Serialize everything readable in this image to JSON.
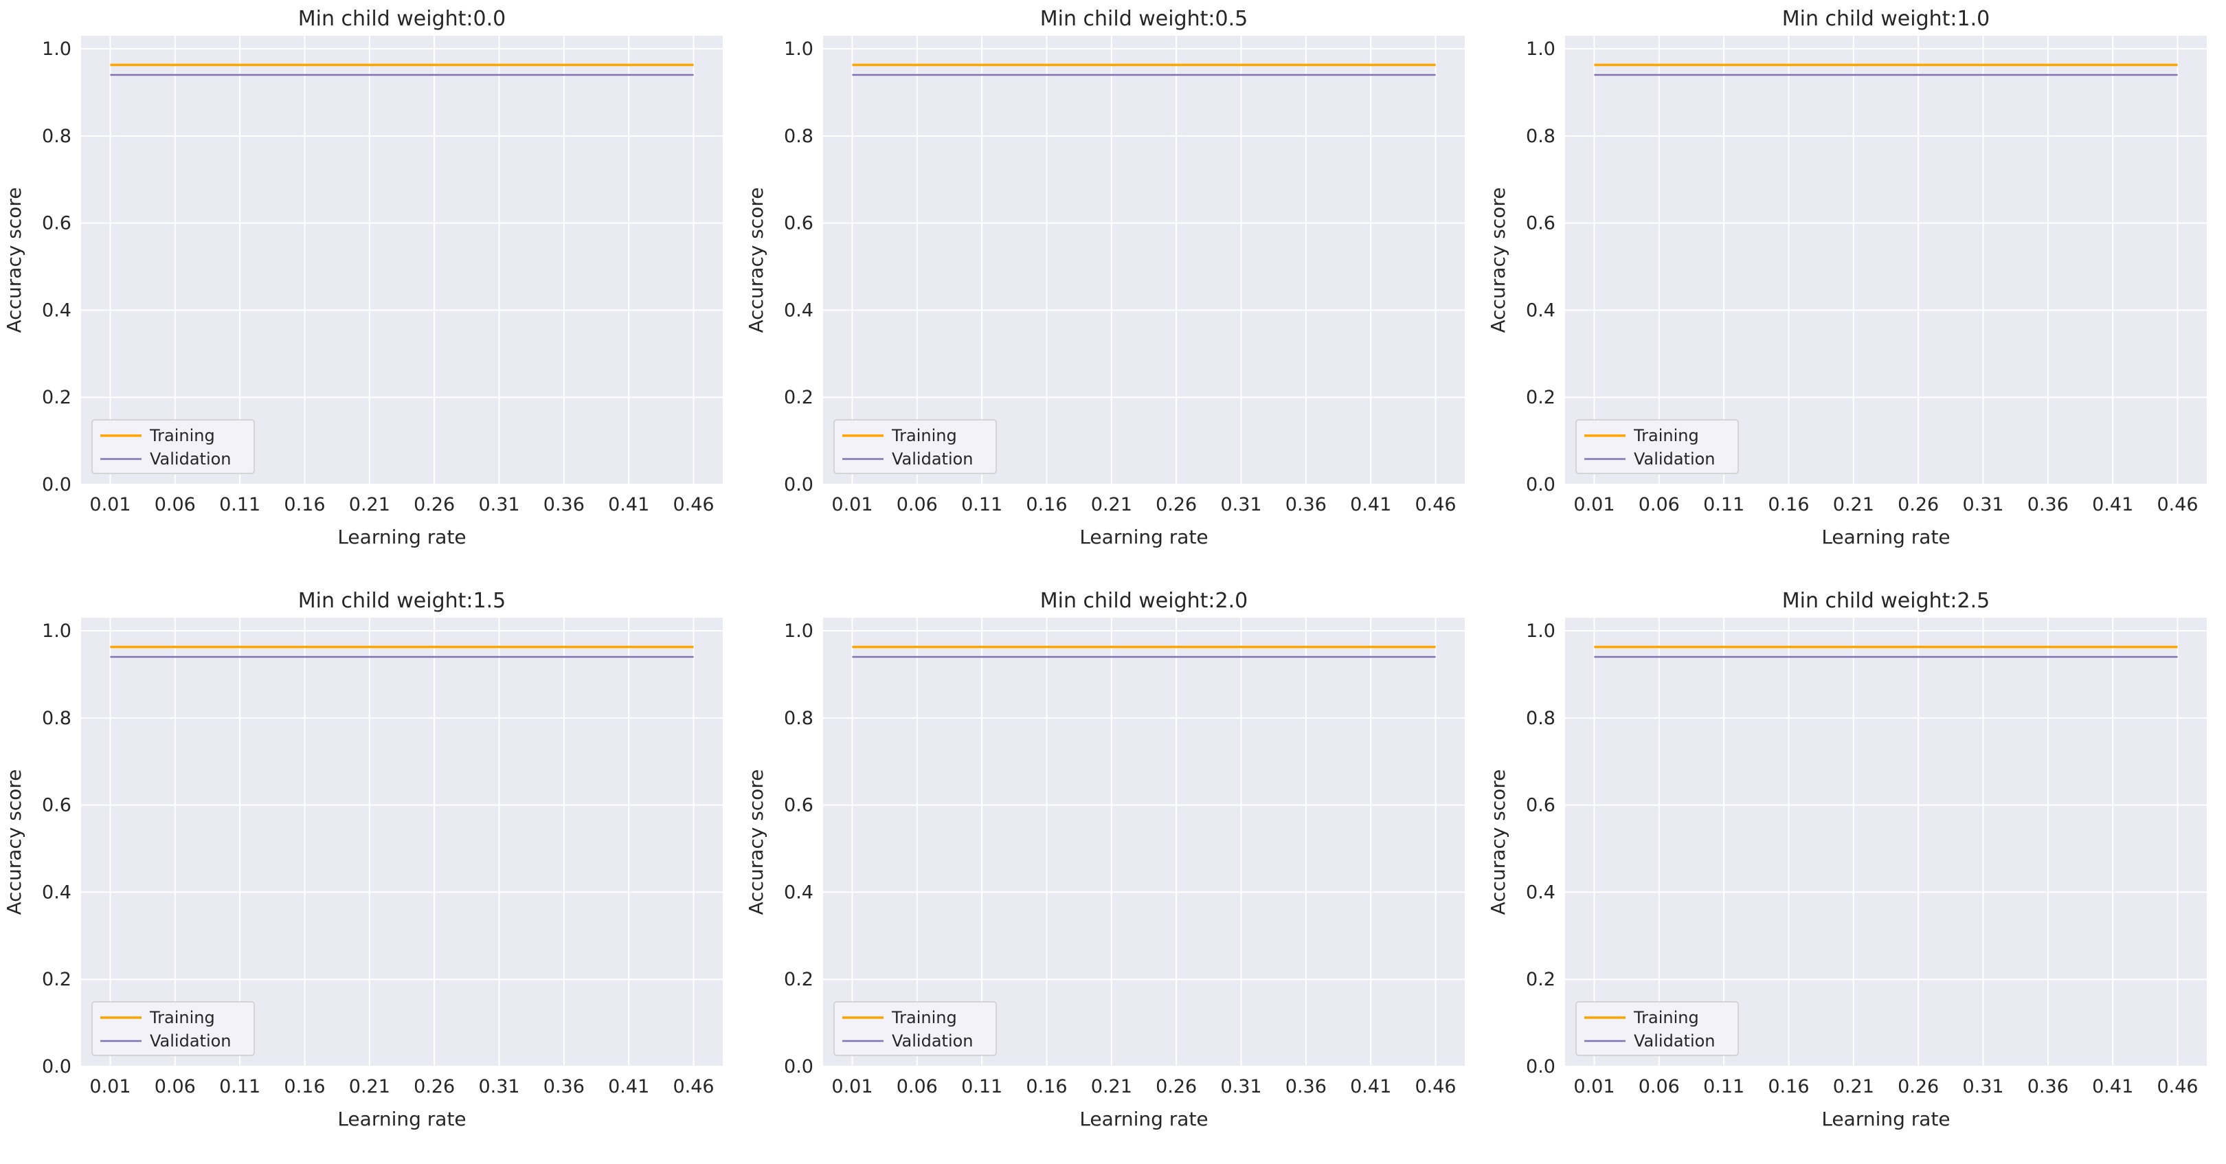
{
  "style": {
    "figure_bg": "#ffffff",
    "axes_bg": "#eaeaf2",
    "grid_color": "#ffffff",
    "text_color": "#262626",
    "legend_bg": "#f2f2f8",
    "legend_border": "#cccccc",
    "training_color": "#ffa500",
    "validation_color": "#8172b2"
  },
  "chart_data": [
    {
      "type": "line",
      "title": "Min child weight:0.0",
      "xlabel": "Learning rate",
      "ylabel": "Accuracy score",
      "x": [
        0.01,
        0.06,
        0.11,
        0.16,
        0.21,
        0.26,
        0.31,
        0.36,
        0.41,
        0.46
      ],
      "xticks": [
        0.01,
        0.06,
        0.11,
        0.16,
        0.21,
        0.26,
        0.31,
        0.36,
        0.41,
        0.46
      ],
      "xtick_labels": [
        "0.01",
        "0.06",
        "0.11",
        "0.16",
        "0.21",
        "0.26",
        "0.31",
        "0.36",
        "0.41",
        "0.46"
      ],
      "yticks": [
        0.0,
        0.2,
        0.4,
        0.6,
        0.8,
        1.0
      ],
      "ytick_labels": [
        "0.0",
        "0.2",
        "0.4",
        "0.6",
        "0.8",
        "1.0"
      ],
      "xlim": [
        -0.0125,
        0.4825
      ],
      "ylim": [
        0,
        1.03
      ],
      "grid": true,
      "legend_position": "lower left",
      "series": [
        {
          "name": "Training",
          "color": "#ffa500",
          "linewidth": 3.5,
          "values": [
            0.963,
            0.963,
            0.963,
            0.963,
            0.963,
            0.963,
            0.963,
            0.963,
            0.963,
            0.963
          ]
        },
        {
          "name": "Validation",
          "color": "#8172b2",
          "linewidth": 2.5,
          "values": [
            0.94,
            0.94,
            0.94,
            0.94,
            0.94,
            0.94,
            0.94,
            0.94,
            0.94,
            0.94
          ]
        }
      ]
    },
    {
      "type": "line",
      "title": "Min child weight:0.5",
      "xlabel": "Learning rate",
      "ylabel": "Accuracy score",
      "x": [
        0.01,
        0.06,
        0.11,
        0.16,
        0.21,
        0.26,
        0.31,
        0.36,
        0.41,
        0.46
      ],
      "xticks": [
        0.01,
        0.06,
        0.11,
        0.16,
        0.21,
        0.26,
        0.31,
        0.36,
        0.41,
        0.46
      ],
      "xtick_labels": [
        "0.01",
        "0.06",
        "0.11",
        "0.16",
        "0.21",
        "0.26",
        "0.31",
        "0.36",
        "0.41",
        "0.46"
      ],
      "yticks": [
        0.0,
        0.2,
        0.4,
        0.6,
        0.8,
        1.0
      ],
      "ytick_labels": [
        "0.0",
        "0.2",
        "0.4",
        "0.6",
        "0.8",
        "1.0"
      ],
      "xlim": [
        -0.0125,
        0.4825
      ],
      "ylim": [
        0,
        1.03
      ],
      "grid": true,
      "legend_position": "lower left",
      "series": [
        {
          "name": "Training",
          "color": "#ffa500",
          "linewidth": 3.5,
          "values": [
            0.963,
            0.963,
            0.963,
            0.963,
            0.963,
            0.963,
            0.963,
            0.963,
            0.963,
            0.963
          ]
        },
        {
          "name": "Validation",
          "color": "#8172b2",
          "linewidth": 2.5,
          "values": [
            0.94,
            0.94,
            0.94,
            0.94,
            0.94,
            0.94,
            0.94,
            0.94,
            0.94,
            0.94
          ]
        }
      ]
    },
    {
      "type": "line",
      "title": "Min child weight:1.0",
      "xlabel": "Learning rate",
      "ylabel": "Accuracy score",
      "x": [
        0.01,
        0.06,
        0.11,
        0.16,
        0.21,
        0.26,
        0.31,
        0.36,
        0.41,
        0.46
      ],
      "xticks": [
        0.01,
        0.06,
        0.11,
        0.16,
        0.21,
        0.26,
        0.31,
        0.36,
        0.41,
        0.46
      ],
      "xtick_labels": [
        "0.01",
        "0.06",
        "0.11",
        "0.16",
        "0.21",
        "0.26",
        "0.31",
        "0.36",
        "0.41",
        "0.46"
      ],
      "yticks": [
        0.0,
        0.2,
        0.4,
        0.6,
        0.8,
        1.0
      ],
      "ytick_labels": [
        "0.0",
        "0.2",
        "0.4",
        "0.6",
        "0.8",
        "1.0"
      ],
      "xlim": [
        -0.0125,
        0.4825
      ],
      "ylim": [
        0,
        1.03
      ],
      "grid": true,
      "legend_position": "lower left",
      "series": [
        {
          "name": "Training",
          "color": "#ffa500",
          "linewidth": 3.5,
          "values": [
            0.963,
            0.963,
            0.963,
            0.963,
            0.963,
            0.963,
            0.963,
            0.963,
            0.963,
            0.963
          ]
        },
        {
          "name": "Validation",
          "color": "#8172b2",
          "linewidth": 2.5,
          "values": [
            0.94,
            0.94,
            0.94,
            0.94,
            0.94,
            0.94,
            0.94,
            0.94,
            0.94,
            0.94
          ]
        }
      ]
    },
    {
      "type": "line",
      "title": "Min child weight:1.5",
      "xlabel": "Learning rate",
      "ylabel": "Accuracy score",
      "x": [
        0.01,
        0.06,
        0.11,
        0.16,
        0.21,
        0.26,
        0.31,
        0.36,
        0.41,
        0.46
      ],
      "xticks": [
        0.01,
        0.06,
        0.11,
        0.16,
        0.21,
        0.26,
        0.31,
        0.36,
        0.41,
        0.46
      ],
      "xtick_labels": [
        "0.01",
        "0.06",
        "0.11",
        "0.16",
        "0.21",
        "0.26",
        "0.31",
        "0.36",
        "0.41",
        "0.46"
      ],
      "yticks": [
        0.0,
        0.2,
        0.4,
        0.6,
        0.8,
        1.0
      ],
      "ytick_labels": [
        "0.0",
        "0.2",
        "0.4",
        "0.6",
        "0.8",
        "1.0"
      ],
      "xlim": [
        -0.0125,
        0.4825
      ],
      "ylim": [
        0,
        1.03
      ],
      "grid": true,
      "legend_position": "lower left",
      "series": [
        {
          "name": "Training",
          "color": "#ffa500",
          "linewidth": 3.5,
          "values": [
            0.963,
            0.963,
            0.963,
            0.963,
            0.963,
            0.963,
            0.963,
            0.963,
            0.963,
            0.963
          ]
        },
        {
          "name": "Validation",
          "color": "#8172b2",
          "linewidth": 2.5,
          "values": [
            0.94,
            0.94,
            0.94,
            0.94,
            0.94,
            0.94,
            0.94,
            0.94,
            0.94,
            0.94
          ]
        }
      ]
    },
    {
      "type": "line",
      "title": "Min child weight:2.0",
      "xlabel": "Learning rate",
      "ylabel": "Accuracy score",
      "x": [
        0.01,
        0.06,
        0.11,
        0.16,
        0.21,
        0.26,
        0.31,
        0.36,
        0.41,
        0.46
      ],
      "xticks": [
        0.01,
        0.06,
        0.11,
        0.16,
        0.21,
        0.26,
        0.31,
        0.36,
        0.41,
        0.46
      ],
      "xtick_labels": [
        "0.01",
        "0.06",
        "0.11",
        "0.16",
        "0.21",
        "0.26",
        "0.31",
        "0.36",
        "0.41",
        "0.46"
      ],
      "yticks": [
        0.0,
        0.2,
        0.4,
        0.6,
        0.8,
        1.0
      ],
      "ytick_labels": [
        "0.0",
        "0.2",
        "0.4",
        "0.6",
        "0.8",
        "1.0"
      ],
      "xlim": [
        -0.0125,
        0.4825
      ],
      "ylim": [
        0,
        1.03
      ],
      "grid": true,
      "legend_position": "lower left",
      "series": [
        {
          "name": "Training",
          "color": "#ffa500",
          "linewidth": 3.5,
          "values": [
            0.963,
            0.963,
            0.963,
            0.963,
            0.963,
            0.963,
            0.963,
            0.963,
            0.963,
            0.963
          ]
        },
        {
          "name": "Validation",
          "color": "#8172b2",
          "linewidth": 2.5,
          "values": [
            0.94,
            0.94,
            0.94,
            0.94,
            0.94,
            0.94,
            0.94,
            0.94,
            0.94,
            0.94
          ]
        }
      ]
    },
    {
      "type": "line",
      "title": "Min child weight:2.5",
      "xlabel": "Learning rate",
      "ylabel": "Accuracy score",
      "x": [
        0.01,
        0.06,
        0.11,
        0.16,
        0.21,
        0.26,
        0.31,
        0.36,
        0.41,
        0.46
      ],
      "xticks": [
        0.01,
        0.06,
        0.11,
        0.16,
        0.21,
        0.26,
        0.31,
        0.36,
        0.41,
        0.46
      ],
      "xtick_labels": [
        "0.01",
        "0.06",
        "0.11",
        "0.16",
        "0.21",
        "0.26",
        "0.31",
        "0.36",
        "0.41",
        "0.46"
      ],
      "yticks": [
        0.0,
        0.2,
        0.4,
        0.6,
        0.8,
        1.0
      ],
      "ytick_labels": [
        "0.0",
        "0.2",
        "0.4",
        "0.6",
        "0.8",
        "1.0"
      ],
      "xlim": [
        -0.0125,
        0.4825
      ],
      "ylim": [
        0,
        1.03
      ],
      "grid": true,
      "legend_position": "lower left",
      "series": [
        {
          "name": "Training",
          "color": "#ffa500",
          "linewidth": 3.5,
          "values": [
            0.963,
            0.963,
            0.963,
            0.963,
            0.963,
            0.963,
            0.963,
            0.963,
            0.963,
            0.963
          ]
        },
        {
          "name": "Validation",
          "color": "#8172b2",
          "linewidth": 2.5,
          "values": [
            0.94,
            0.94,
            0.94,
            0.94,
            0.94,
            0.94,
            0.94,
            0.94,
            0.94,
            0.94
          ]
        }
      ]
    }
  ]
}
